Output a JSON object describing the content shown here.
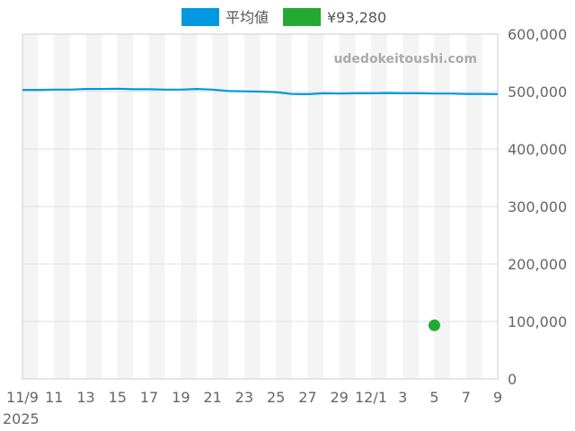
{
  "chart_data": {
    "type": "line",
    "watermark": "udedokeitoushi.com",
    "x_tick_labels": [
      "11/9",
      "11",
      "13",
      "15",
      "17",
      "19",
      "21",
      "23",
      "25",
      "27",
      "29",
      "12/1",
      "3",
      "5",
      "7",
      "9"
    ],
    "x_year_label": "2025",
    "y_tick_labels": [
      "0",
      "100,000",
      "200,000",
      "300,000",
      "400,000",
      "500,000",
      "600,000"
    ],
    "ylim": [
      0,
      600000
    ],
    "grid": true,
    "legend_placement": "top-center",
    "dates": [
      "2025-11-09",
      "2025-11-10",
      "2025-11-11",
      "2025-11-12",
      "2025-11-13",
      "2025-11-14",
      "2025-11-15",
      "2025-11-16",
      "2025-11-17",
      "2025-11-18",
      "2025-11-19",
      "2025-11-20",
      "2025-11-21",
      "2025-11-22",
      "2025-11-23",
      "2025-11-24",
      "2025-11-25",
      "2025-11-26",
      "2025-11-27",
      "2025-11-28",
      "2025-11-29",
      "2025-11-30",
      "2025-12-01",
      "2025-12-02",
      "2025-12-03",
      "2025-12-04",
      "2025-12-05",
      "2025-12-06",
      "2025-12-07",
      "2025-12-08",
      "2025-12-09"
    ],
    "series": [
      {
        "name": "平均値",
        "type": "line",
        "color": "#0099e0",
        "values": [
          503000,
          503000,
          503500,
          503500,
          504500,
          504500,
          505000,
          504000,
          504000,
          503500,
          503500,
          504500,
          503500,
          501000,
          500500,
          500000,
          499000,
          496000,
          495500,
          497000,
          496500,
          497000,
          497000,
          497500,
          497000,
          497000,
          496500,
          496500,
          496000,
          496000,
          495500
        ]
      },
      {
        "name": "¥93,280",
        "type": "point",
        "color": "#22aa33",
        "points": [
          {
            "date": "2025-12-05",
            "value": 93280
          }
        ]
      }
    ]
  }
}
